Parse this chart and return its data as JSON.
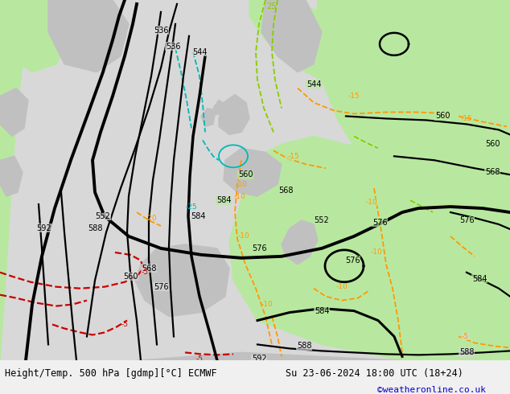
{
  "title_left": "Height/Temp. 500 hPa [gdmp][°C] ECMWF",
  "title_right": "Su 23-06-2024 18:00 UTC (18+24)",
  "credit": "©weatheronline.co.uk",
  "bg_map": "#d8d8d8",
  "bg_ocean": "#d8d8d8",
  "green_color": "#b8e8a0",
  "land_gray": "#c0c0c0",
  "bottom_bar_color": "#f0f0f0",
  "title_fontsize": 8.5,
  "credit_fontsize": 8,
  "credit_color": "#0000cc",
  "fig_width": 6.34,
  "fig_height": 4.9,
  "dpi": 100,
  "black": "#000000",
  "orange": "#ff9900",
  "cyan": "#00b8b8",
  "yellow_green": "#88cc00",
  "red": "#cc0000"
}
